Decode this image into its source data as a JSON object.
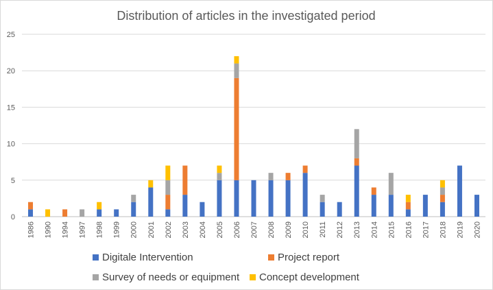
{
  "chart_data": {
    "type": "bar",
    "stacked": true,
    "title": "Distribution of articles in the investigated period",
    "xlabel": "",
    "ylabel": "",
    "ylim": [
      0,
      25
    ],
    "yticks": [
      0,
      5,
      10,
      15,
      20,
      25
    ],
    "grid": true,
    "legend_position": "bottom",
    "categories": [
      "1986",
      "1990",
      "1994",
      "1997",
      "1998",
      "1999",
      "2000",
      "2001",
      "2002",
      "2003",
      "2004",
      "2005",
      "2006",
      "2007",
      "2008",
      "2009",
      "2010",
      "2011",
      "2012",
      "2013",
      "2014",
      "2015",
      "2016",
      "2017",
      "2018",
      "2019",
      "2020"
    ],
    "series": [
      {
        "name": "Digitale Intervention",
        "color": "#4472c4",
        "values": [
          1,
          0,
          0,
          0,
          1,
          1,
          2,
          4,
          1,
          3,
          2,
          5,
          5,
          5,
          5,
          5,
          6,
          2,
          2,
          7,
          3,
          3,
          1,
          3,
          2,
          7,
          3
        ]
      },
      {
        "name": "Project report",
        "color": "#ed7d31",
        "values": [
          1,
          0,
          1,
          0,
          0,
          0,
          0,
          0,
          2,
          4,
          0,
          0,
          14,
          0,
          0,
          1,
          1,
          0,
          0,
          1,
          1,
          0,
          1,
          0,
          1,
          0,
          0
        ]
      },
      {
        "name": "Survey of needs or equipment",
        "color": "#a5a5a5",
        "values": [
          0,
          0,
          0,
          1,
          0,
          0,
          1,
          0,
          2,
          0,
          0,
          1,
          2,
          0,
          1,
          0,
          0,
          1,
          0,
          4,
          0,
          3,
          0,
          0,
          1,
          0,
          0
        ]
      },
      {
        "name": "Concept development",
        "color": "#ffc000",
        "values": [
          0,
          1,
          0,
          0,
          1,
          0,
          0,
          1,
          2,
          0,
          0,
          1,
          1,
          0,
          0,
          0,
          0,
          0,
          0,
          0,
          0,
          0,
          1,
          0,
          1,
          0,
          0
        ]
      }
    ]
  }
}
